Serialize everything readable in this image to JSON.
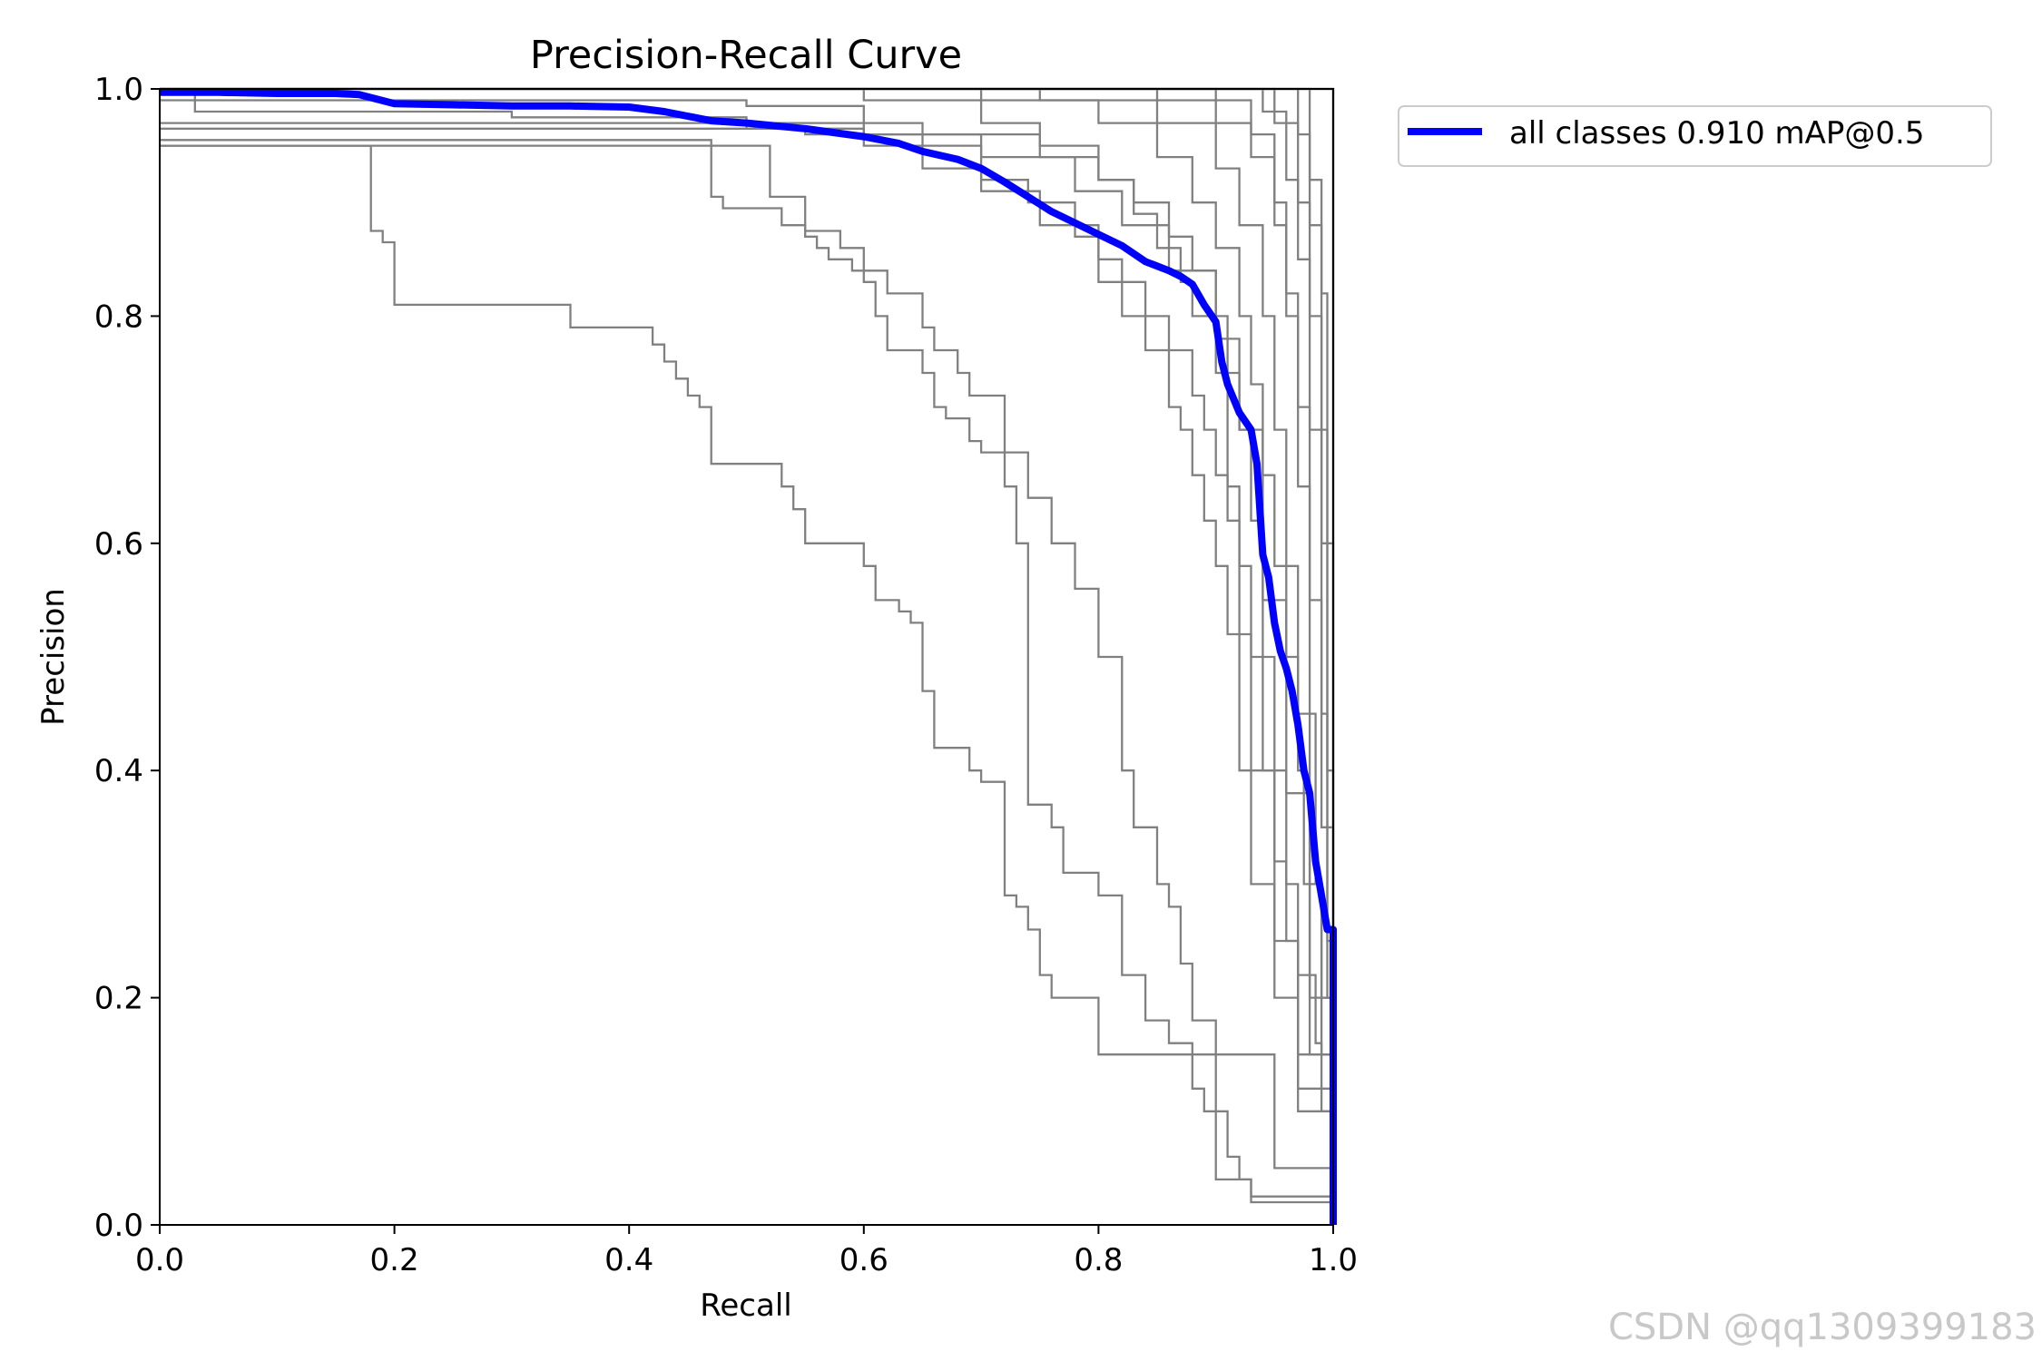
{
  "watermark": "CSDN @qq1309399183",
  "chart_data": {
    "type": "line",
    "title": "Precision-Recall Curve",
    "xlabel": "Recall",
    "ylabel": "Precision",
    "xlim": [
      0.0,
      1.0
    ],
    "ylim": [
      0.0,
      1.0
    ],
    "xticks": [
      "0.0",
      "0.2",
      "0.4",
      "0.6",
      "0.8",
      "1.0"
    ],
    "yticks": [
      "0.0",
      "0.2",
      "0.4",
      "0.6",
      "0.8",
      "1.0"
    ],
    "grid": false,
    "legend_position": "outside-top-right",
    "series_colors": {
      "all": "#0000ff",
      "class": "#808080"
    },
    "series": [
      {
        "name": "all classes 0.910 mAP@0.5",
        "color": "#0000ff",
        "x": [
          0.0,
          0.05,
          0.1,
          0.15,
          0.17,
          0.2,
          0.25,
          0.3,
          0.35,
          0.4,
          0.43,
          0.47,
          0.5,
          0.55,
          0.6,
          0.63,
          0.65,
          0.68,
          0.7,
          0.72,
          0.74,
          0.76,
          0.78,
          0.8,
          0.82,
          0.84,
          0.86,
          0.87,
          0.88,
          0.89,
          0.9,
          0.905,
          0.91,
          0.92,
          0.93,
          0.935,
          0.94,
          0.945,
          0.95,
          0.955,
          0.96,
          0.965,
          0.97,
          0.975,
          0.98,
          0.985,
          0.99,
          0.995,
          1.0,
          1.0
        ],
        "y": [
          0.997,
          0.997,
          0.996,
          0.996,
          0.995,
          0.987,
          0.986,
          0.985,
          0.985,
          0.984,
          0.98,
          0.972,
          0.97,
          0.965,
          0.958,
          0.952,
          0.945,
          0.938,
          0.93,
          0.918,
          0.905,
          0.892,
          0.882,
          0.872,
          0.862,
          0.848,
          0.84,
          0.835,
          0.828,
          0.81,
          0.795,
          0.76,
          0.74,
          0.715,
          0.7,
          0.67,
          0.59,
          0.57,
          0.53,
          0.505,
          0.49,
          0.47,
          0.44,
          0.4,
          0.38,
          0.32,
          0.29,
          0.26,
          0.26,
          0.0
        ]
      },
      {
        "x": [
          0.0,
          0.18,
          0.18,
          0.19,
          0.2,
          0.2,
          0.35,
          0.35,
          0.41,
          0.42,
          0.43,
          0.44,
          0.45,
          0.46,
          0.47,
          0.47,
          0.53,
          0.53,
          0.54,
          0.54,
          0.55,
          0.55,
          0.6,
          0.6,
          0.61,
          0.61,
          0.63,
          0.64,
          0.65,
          0.65,
          0.66,
          0.66,
          0.69,
          0.7,
          0.72,
          0.72,
          0.73,
          0.74,
          0.75,
          0.75,
          0.76,
          0.8,
          0.95,
          1.0
        ],
        "y": [
          0.95,
          0.95,
          0.875,
          0.865,
          0.81,
          0.81,
          0.805,
          0.79,
          0.79,
          0.775,
          0.76,
          0.745,
          0.73,
          0.72,
          0.7,
          0.67,
          0.67,
          0.65,
          0.645,
          0.63,
          0.62,
          0.6,
          0.6,
          0.58,
          0.57,
          0.55,
          0.54,
          0.53,
          0.5,
          0.47,
          0.44,
          0.42,
          0.4,
          0.39,
          0.37,
          0.29,
          0.28,
          0.26,
          0.24,
          0.22,
          0.2,
          0.15,
          0.05,
          0.0
        ]
      },
      {
        "x": [
          0.0,
          0.35,
          0.4,
          0.47,
          0.47,
          0.48,
          0.53,
          0.55,
          0.56,
          0.57,
          0.59,
          0.6,
          0.61,
          0.62,
          0.62,
          0.65,
          0.66,
          0.67,
          0.69,
          0.7,
          0.72,
          0.73,
          0.73,
          0.74,
          0.74,
          0.76,
          0.77,
          0.8,
          0.82,
          0.82,
          0.84,
          0.84,
          0.86,
          0.88,
          0.88,
          0.89,
          0.9,
          0.9,
          0.93,
          1.0
        ],
        "y": [
          0.955,
          0.955,
          0.955,
          0.93,
          0.905,
          0.895,
          0.88,
          0.87,
          0.86,
          0.85,
          0.84,
          0.83,
          0.8,
          0.79,
          0.77,
          0.75,
          0.72,
          0.71,
          0.69,
          0.68,
          0.65,
          0.63,
          0.6,
          0.38,
          0.37,
          0.35,
          0.31,
          0.29,
          0.27,
          0.22,
          0.2,
          0.18,
          0.16,
          0.13,
          0.12,
          0.1,
          0.08,
          0.04,
          0.02,
          0.0
        ]
      },
      {
        "x": [
          0.0,
          0.1,
          0.2,
          0.28,
          0.34,
          0.38,
          0.42,
          0.5,
          0.52,
          0.55,
          0.58,
          0.6,
          0.62,
          0.65,
          0.66,
          0.68,
          0.69,
          0.72,
          0.72,
          0.74,
          0.76,
          0.78,
          0.8,
          0.82,
          0.83,
          0.85,
          0.86,
          0.87,
          0.88,
          0.9,
          0.91,
          0.92,
          0.93,
          1.0
        ],
        "y": [
          0.95,
          0.95,
          0.95,
          0.95,
          0.95,
          0.95,
          0.95,
          0.95,
          0.905,
          0.875,
          0.86,
          0.84,
          0.82,
          0.79,
          0.77,
          0.75,
          0.73,
          0.72,
          0.68,
          0.64,
          0.6,
          0.56,
          0.5,
          0.4,
          0.35,
          0.3,
          0.28,
          0.23,
          0.18,
          0.1,
          0.06,
          0.04,
          0.025,
          0.0
        ]
      },
      {
        "x": [
          0.0,
          0.2,
          0.4,
          0.5,
          0.55,
          0.6,
          0.65,
          0.7,
          0.75,
          0.8,
          0.82,
          0.84,
          0.86,
          0.87,
          0.88,
          0.89,
          0.9,
          0.91,
          0.92,
          0.93,
          0.95,
          0.97,
          1.0
        ],
        "y": [
          0.97,
          0.97,
          0.97,
          0.965,
          0.96,
          0.95,
          0.93,
          0.91,
          0.88,
          0.83,
          0.8,
          0.77,
          0.72,
          0.7,
          0.66,
          0.62,
          0.58,
          0.52,
          0.4,
          0.3,
          0.2,
          0.1,
          0.0
        ]
      },
      {
        "x": [
          0.0,
          0.3,
          0.5,
          0.6,
          0.65,
          0.7,
          0.74,
          0.78,
          0.8,
          0.82,
          0.84,
          0.86,
          0.88,
          0.89,
          0.9,
          0.91,
          0.92,
          0.93,
          0.94,
          0.95,
          0.96,
          0.97,
          1.0
        ],
        "y": [
          0.99,
          0.99,
          0.985,
          0.97,
          0.95,
          0.92,
          0.9,
          0.87,
          0.85,
          0.83,
          0.8,
          0.77,
          0.73,
          0.7,
          0.66,
          0.62,
          0.58,
          0.5,
          0.4,
          0.32,
          0.25,
          0.15,
          0.0
        ]
      },
      {
        "x": [
          0.0,
          0.4,
          0.6,
          0.7,
          0.75,
          0.8,
          0.83,
          0.86,
          0.88,
          0.9,
          0.91,
          0.92,
          0.93,
          0.94,
          0.95,
          0.96,
          0.97,
          0.98,
          1.0
        ],
        "y": [
          1.0,
          1.0,
          0.99,
          0.97,
          0.95,
          0.92,
          0.9,
          0.87,
          0.84,
          0.8,
          0.75,
          0.7,
          0.62,
          0.5,
          0.4,
          0.3,
          0.22,
          0.15,
          0.0
        ]
      },
      {
        "x": [
          0.0,
          0.5,
          0.7,
          0.8,
          0.85,
          0.88,
          0.9,
          0.92,
          0.93,
          0.94,
          0.95,
          0.96,
          0.97,
          0.975,
          0.98,
          0.985,
          0.99,
          1.0
        ],
        "y": [
          1.0,
          1.0,
          0.99,
          0.97,
          0.94,
          0.9,
          0.86,
          0.8,
          0.74,
          0.66,
          0.58,
          0.5,
          0.4,
          0.3,
          0.22,
          0.16,
          0.1,
          0.0
        ]
      },
      {
        "x": [
          0.0,
          0.6,
          0.75,
          0.85,
          0.9,
          0.92,
          0.94,
          0.95,
          0.96,
          0.97,
          0.98,
          0.99,
          1.0
        ],
        "y": [
          1.0,
          1.0,
          0.99,
          0.97,
          0.93,
          0.88,
          0.8,
          0.7,
          0.58,
          0.45,
          0.3,
          0.15,
          0.0
        ]
      },
      {
        "x": [
          0.0,
          0.7,
          0.85,
          0.9,
          0.93,
          0.95,
          0.96,
          0.97,
          0.98,
          0.985,
          0.99,
          1.0
        ],
        "y": [
          1.0,
          1.0,
          0.99,
          0.97,
          0.94,
          0.88,
          0.8,
          0.65,
          0.45,
          0.3,
          0.2,
          0.0
        ]
      },
      {
        "x": [
          0.0,
          0.8,
          0.9,
          0.93,
          0.95,
          0.96,
          0.97,
          0.98,
          0.99,
          0.995,
          1.0
        ],
        "y": [
          1.0,
          1.0,
          0.99,
          0.96,
          0.9,
          0.82,
          0.72,
          0.55,
          0.35,
          0.2,
          0.0
        ]
      },
      {
        "x": [
          0.0,
          0.88,
          0.94,
          0.96,
          0.97,
          0.98,
          0.99,
          0.995,
          1.0
        ],
        "y": [
          1.0,
          1.0,
          0.98,
          0.92,
          0.85,
          0.7,
          0.45,
          0.25,
          0.0
        ]
      },
      {
        "x": [
          0.0,
          0.92,
          0.95,
          0.97,
          0.98,
          0.99,
          0.995,
          1.0
        ],
        "y": [
          1.0,
          1.0,
          0.97,
          0.9,
          0.8,
          0.6,
          0.35,
          0.0
        ]
      },
      {
        "x": [
          0.0,
          0.95,
          0.97,
          0.98,
          0.99,
          0.995,
          1.0
        ],
        "y": [
          1.0,
          1.0,
          0.96,
          0.88,
          0.7,
          0.4,
          0.0
        ]
      },
      {
        "x": [
          0.0,
          0.96,
          0.98,
          0.99,
          0.995,
          1.0
        ],
        "y": [
          1.0,
          1.0,
          0.92,
          0.82,
          0.6,
          0.0
        ]
      },
      {
        "x": [
          0.0,
          0.2,
          0.6,
          0.75,
          0.8,
          0.83,
          0.85,
          0.87,
          0.88,
          0.9,
          0.91,
          0.92,
          0.93,
          0.95,
          0.97,
          1.0
        ],
        "y": [
          0.965,
          0.965,
          0.96,
          0.94,
          0.92,
          0.89,
          0.86,
          0.83,
          0.8,
          0.75,
          0.65,
          0.52,
          0.4,
          0.25,
          0.12,
          0.0
        ]
      },
      {
        "x": [
          0.0,
          0.03,
          0.1,
          0.3,
          0.5,
          0.6,
          0.7,
          0.78,
          0.82,
          0.86,
          0.9,
          0.92,
          0.94,
          0.96,
          0.98,
          1.0
        ],
        "y": [
          1.0,
          0.98,
          0.98,
          0.975,
          0.97,
          0.96,
          0.94,
          0.91,
          0.88,
          0.84,
          0.78,
          0.7,
          0.55,
          0.38,
          0.2,
          0.0
        ]
      },
      {
        "x": [
          0.0,
          0.99,
          1.0,
          1.0
        ],
        "y": [
          1.0,
          1.0,
          0.82,
          0.0
        ]
      },
      {
        "x": [
          0.0,
          0.995,
          1.0,
          1.0
        ],
        "y": [
          1.0,
          1.0,
          0.7,
          0.0
        ]
      },
      {
        "x": [
          0.0,
          0.998,
          1.0,
          1.0
        ],
        "y": [
          1.0,
          1.0,
          0.52,
          0.0
        ]
      }
    ]
  }
}
